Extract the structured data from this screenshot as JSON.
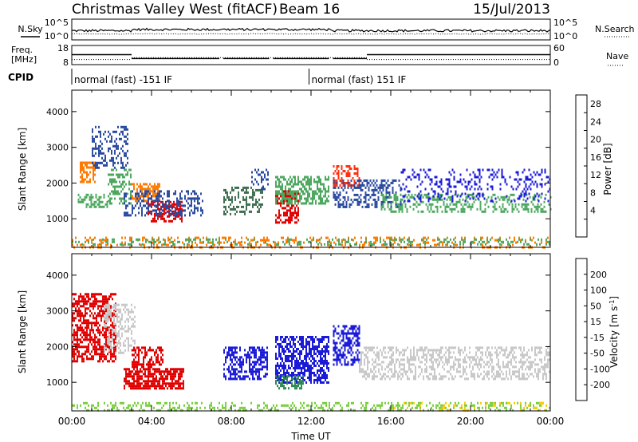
{
  "header": {
    "station": "Christmas Valley West (fitACF)",
    "beam": "Beam 16",
    "date": "15/Jul/2013"
  },
  "chart_data": [
    {
      "type": "line",
      "panel": "noise",
      "ylabel_left": "N.Sky",
      "ylabel_right": "N.Search",
      "left_ticks": [
        "10^5",
        "10^0"
      ],
      "right_ticks": [
        "10^5",
        "10^0"
      ],
      "series": [
        {
          "name": "N.Sky",
          "style": "solid"
        },
        {
          "name": "N.Search",
          "style": "dotted"
        }
      ]
    },
    {
      "type": "line",
      "panel": "frequency",
      "ylabel_left": "Freq. [MHz]",
      "ylabel_right": "Nave",
      "left_ticks": [
        18,
        8
      ],
      "right_ticks": [
        60,
        0
      ],
      "freq_segments": [
        {
          "x": [
            0,
            3.0
          ],
          "y": 13.2
        },
        {
          "x": [
            3.0,
            7.4
          ],
          "y": 11.2
        },
        {
          "x": [
            7.6,
            9.9
          ],
          "y": 11.2
        },
        {
          "x": [
            10.1,
            12.9
          ],
          "y": 11.2
        },
        {
          "x": [
            13.1,
            14.8
          ],
          "y": 11.2
        },
        {
          "x": [
            14.8,
            24
          ],
          "y": 13.2
        }
      ],
      "nave_segments": [
        {
          "x": [
            0,
            3.0
          ],
          "y": 16
        },
        {
          "x": [
            3.0,
            14.8
          ],
          "y": 22
        },
        {
          "x": [
            14.8,
            24
          ],
          "y": 16
        }
      ]
    },
    {
      "type": "table",
      "panel": "cpid",
      "label": "CPID",
      "entries": [
        {
          "x": 0.0,
          "text": "normal (fast) -151 IF"
        },
        {
          "x": 11.9,
          "text": "normal (fast) 151 IF"
        }
      ]
    },
    {
      "type": "heatmap",
      "panel": "power",
      "ylabel": "Slant Range [km]",
      "yticks": [
        1000,
        2000,
        3000,
        4000
      ],
      "ylim": [
        200,
        4600
      ],
      "xlim": [
        0,
        24
      ],
      "colorbar": {
        "label": "Power [dB]",
        "ticks": [
          "28",
          "24",
          "20",
          "16",
          "12",
          "8",
          "4"
        ],
        "colors": [
          "#e00000",
          "#ff3010",
          "#ff7a00",
          "#ffaa00",
          "#4ea860",
          "#3e6e50",
          "#2a4aa0",
          "#1a1ad8"
        ]
      },
      "regions": [
        {
          "x": [
            0.3,
            1.8
          ],
          "y": [
            1300,
            1700
          ],
          "color": "#4ea860",
          "density": 0.55
        },
        {
          "x": [
            0.4,
            1.2
          ],
          "y": [
            2000,
            2600
          ],
          "color": "#ff7a00",
          "density": 0.55
        },
        {
          "x": [
            1.0,
            2.8
          ],
          "y": [
            2400,
            3600
          ],
          "color": "#2a4aa0",
          "density": 0.35
        },
        {
          "x": [
            1.8,
            3.0
          ],
          "y": [
            1400,
            2400
          ],
          "color": "#4ea860",
          "density": 0.4
        },
        {
          "x": [
            3.0,
            4.4
          ],
          "y": [
            1500,
            2000
          ],
          "color": "#ff7a00",
          "density": 0.6
        },
        {
          "x": [
            3.8,
            5.5
          ],
          "y": [
            900,
            1500
          ],
          "color": "#e00000",
          "density": 0.6
        },
        {
          "x": [
            2.6,
            6.6
          ],
          "y": [
            1100,
            1800
          ],
          "color": "#2a4aa0",
          "density": 0.4
        },
        {
          "x": [
            7.6,
            9.6
          ],
          "y": [
            1100,
            1900
          ],
          "color": "#3e6e50",
          "density": 0.4
        },
        {
          "x": [
            9.0,
            9.9
          ],
          "y": [
            1800,
            2400
          ],
          "color": "#2a4aa0",
          "density": 0.3
        },
        {
          "x": [
            10.2,
            11.4
          ],
          "y": [
            900,
            1800
          ],
          "color": "#e00000",
          "density": 0.6
        },
        {
          "x": [
            10.2,
            12.9
          ],
          "y": [
            1400,
            2200
          ],
          "color": "#4ea860",
          "density": 0.55
        },
        {
          "x": [
            13.1,
            14.4
          ],
          "y": [
            1900,
            2500
          ],
          "color": "#ff3010",
          "density": 0.5
        },
        {
          "x": [
            13.1,
            16.5
          ],
          "y": [
            1300,
            2100
          ],
          "color": "#2a4aa0",
          "density": 0.4
        },
        {
          "x": [
            15.5,
            24.0
          ],
          "y": [
            1200,
            1700
          ],
          "color": "#4ea860",
          "density": 0.35
        },
        {
          "x": [
            16.5,
            24.0
          ],
          "y": [
            1500,
            2400
          ],
          "color": "#1a1ad8",
          "density": 0.2
        },
        {
          "x": [
            0.0,
            24.0
          ],
          "y": [
            200,
            500
          ],
          "color": "#ff7a00",
          "density": 0.25
        },
        {
          "x": [
            0.0,
            24.0
          ],
          "y": [
            250,
            450
          ],
          "color": "#4ea860",
          "density": 0.25
        }
      ]
    },
    {
      "type": "heatmap",
      "panel": "velocity",
      "xlabel": "Time UT",
      "ylabel": "Slant Range [km]",
      "xticks": [
        "00:00",
        "04:00",
        "08:00",
        "12:00",
        "16:00",
        "20:00",
        "00:00"
      ],
      "yticks": [
        1000,
        2000,
        3000,
        4000
      ],
      "ylim": [
        200,
        4600
      ],
      "xlim": [
        0,
        24
      ],
      "colorbar": {
        "label": "Velocity [m s-1]",
        "ticks": [
          "200",
          "100",
          "50",
          "15",
          "-15",
          "-50",
          "-100",
          "-200"
        ],
        "colors": [
          "#1a1ad8",
          "#3060c0",
          "#2e8a50",
          "#7ad040",
          "#c8c8c8",
          "#ffcc00",
          "#ff8a00",
          "#ff4000",
          "#e00000"
        ]
      },
      "regions": [
        {
          "x": [
            0.0,
            2.2
          ],
          "y": [
            1600,
            3500
          ],
          "color": "#e00000",
          "density": 0.6
        },
        {
          "x": [
            1.6,
            3.2
          ],
          "y": [
            1800,
            3200
          ],
          "color": "#c8c8c8",
          "density": 0.45
        },
        {
          "x": [
            2.6,
            5.6
          ],
          "y": [
            800,
            1400
          ],
          "color": "#e00000",
          "density": 0.7
        },
        {
          "x": [
            3.0,
            4.6
          ],
          "y": [
            1400,
            2000
          ],
          "color": "#e00000",
          "density": 0.5
        },
        {
          "x": [
            7.6,
            9.8
          ],
          "y": [
            1100,
            2000
          ],
          "color": "#1a1ad8",
          "density": 0.55
        },
        {
          "x": [
            10.2,
            12.9
          ],
          "y": [
            1000,
            2300
          ],
          "color": "#1a1ad8",
          "density": 0.6
        },
        {
          "x": [
            10.2,
            11.6
          ],
          "y": [
            800,
            1200
          ],
          "color": "#2e8a50",
          "density": 0.5
        },
        {
          "x": [
            13.1,
            14.4
          ],
          "y": [
            1500,
            2600
          ],
          "color": "#1a1ad8",
          "density": 0.55
        },
        {
          "x": [
            14.4,
            24.0
          ],
          "y": [
            1100,
            2000
          ],
          "color": "#c8c8c8",
          "density": 0.45
        },
        {
          "x": [
            0.0,
            24.0
          ],
          "y": [
            200,
            450
          ],
          "color": "#7ad040",
          "density": 0.3
        },
        {
          "x": [
            16.0,
            24.0
          ],
          "y": [
            200,
            450
          ],
          "color": "#ffcc00",
          "density": 0.15
        }
      ]
    }
  ]
}
